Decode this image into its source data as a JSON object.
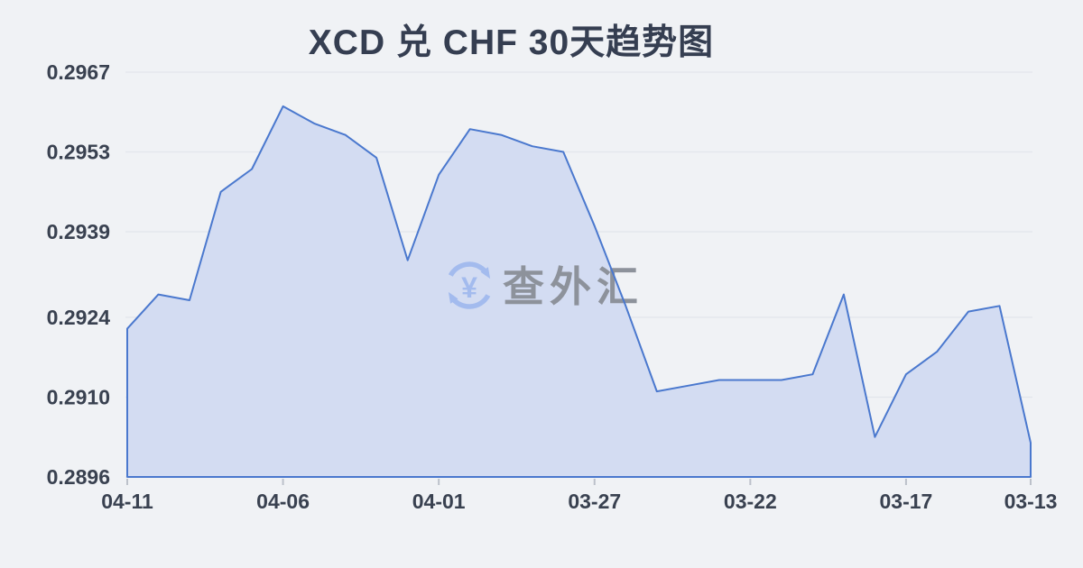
{
  "page": {
    "background": "#f0f2f5"
  },
  "header": {
    "title": "XCD 兑 CHF 30天趋势图"
  },
  "watermark": {
    "text": "查外汇",
    "icon": "currency-exchange-circular-arrows",
    "currency_symbol": "¥"
  },
  "chart_data": {
    "type": "area",
    "title": "XCD 兑 CHF 30天趋势图",
    "x": [
      "04-11",
      "04-10",
      "04-09",
      "04-08",
      "04-07",
      "04-06",
      "04-05",
      "04-04",
      "04-03",
      "04-02",
      "04-01",
      "03-31",
      "03-30",
      "03-29",
      "03-28",
      "03-27",
      "03-26",
      "03-25",
      "03-24",
      "03-23",
      "03-22",
      "03-21",
      "03-20",
      "03-19",
      "03-18",
      "03-17",
      "03-16",
      "03-15",
      "03-14",
      "03-13"
    ],
    "values": [
      0.2922,
      0.2928,
      0.2927,
      0.2946,
      0.295,
      0.2961,
      0.2958,
      0.2956,
      0.2952,
      0.2934,
      0.2949,
      0.2957,
      0.2956,
      0.2954,
      0.2953,
      0.294,
      0.2926,
      0.2911,
      0.2912,
      0.2913,
      0.2913,
      0.2913,
      0.2914,
      0.2928,
      0.2903,
      0.2914,
      0.2918,
      0.2925,
      0.2926,
      0.2902
    ],
    "x_tick_indices": [
      0,
      5,
      10,
      15,
      20,
      25,
      29
    ],
    "x_tick_labels": [
      "04-11",
      "04-06",
      "04-01",
      "03-27",
      "03-22",
      "03-17",
      "03-13"
    ],
    "y_tick_labels": [
      "0.2967",
      "0.2953",
      "0.2939",
      "0.2924",
      "0.2910",
      "0.2896"
    ],
    "ylim": [
      0.2896,
      0.2967
    ],
    "grid": true,
    "legend": null,
    "colors": {
      "line": "#4a78ce",
      "fill": "#d3dcf2",
      "grid": "#e3e6ec",
      "axis_text": "#394150",
      "tick_mark": "#bcc1ca",
      "watermark_text": "#8d929b",
      "watermark_icon": "#a3bbee"
    }
  }
}
